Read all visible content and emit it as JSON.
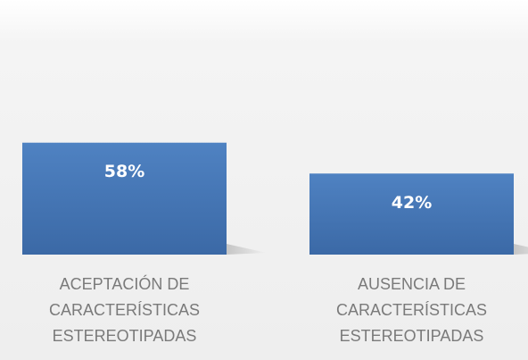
{
  "chart_data": {
    "type": "bar",
    "categories": [
      "ACEPTACIÓN DE CARACTERÍSTICAS ESTEREOTIPADAS",
      "AUSENCIA DE CARACTERÍSTICAS ESTEREOTIPADAS"
    ],
    "values": [
      58,
      42
    ],
    "value_labels": [
      "58%",
      "42%"
    ],
    "color": "#4a7dbd"
  }
}
